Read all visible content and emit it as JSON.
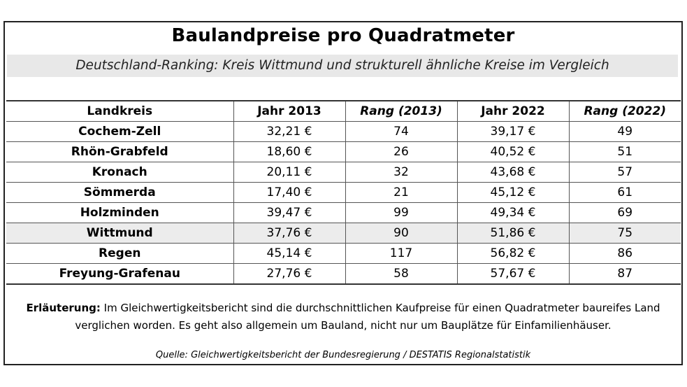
{
  "title": "Baulandpreise pro Quadratmeter",
  "subtitle": "Deutschland-Ranking: Kreis Wittmund und strukturell ähnliche Kreise im Vergleich",
  "table": {
    "headers": [
      "Landkreis",
      "Jahr 2013",
      "Rang (2013)",
      "Jahr 2022",
      "Rang (2022)"
    ],
    "rows": [
      [
        "Cochem-Zell",
        "32,21 €",
        "74",
        "39,17 €",
        "49"
      ],
      [
        "Rhön-Grabfeld",
        "18,60 €",
        "26",
        "40,52 €",
        "51"
      ],
      [
        "Kronach",
        "20,11 €",
        "32",
        "43,68 €",
        "57"
      ],
      [
        "Sömmerda",
        "17,40 €",
        "21",
        "45,12 €",
        "61"
      ],
      [
        "Holzminden",
        "39,47 €",
        "99",
        "49,34 €",
        "69"
      ],
      [
        "Wittmund",
        "37,76 €",
        "90",
        "51,86 €",
        "75"
      ],
      [
        "Regen",
        "45,14 €",
        "117",
        "56,82 €",
        "86"
      ],
      [
        "Freyung-Grafenau",
        "27,76 €",
        "58",
        "57,67 €",
        "87"
      ]
    ],
    "highlight_row": "Wittmund"
  },
  "note": {
    "label": "Erläuterung:",
    "line1": "Im Gleichwertigkeitsbericht sind die durchschnittlichen Kaufpreise für einen Quadratmeter baureifes Land",
    "line2": "verglichen worden. Es geht also allgemein um Bauland, nicht nur um Bauplätze für Einfamilienhäuser."
  },
  "source": "Quelle: Gleichwertigkeitsbericht der Bundesregierung / DESTATIS Regionalstatistik",
  "colors": {
    "highlight_row_bg": "#ececec",
    "subtitle_bg": "#e8e8e8"
  }
}
